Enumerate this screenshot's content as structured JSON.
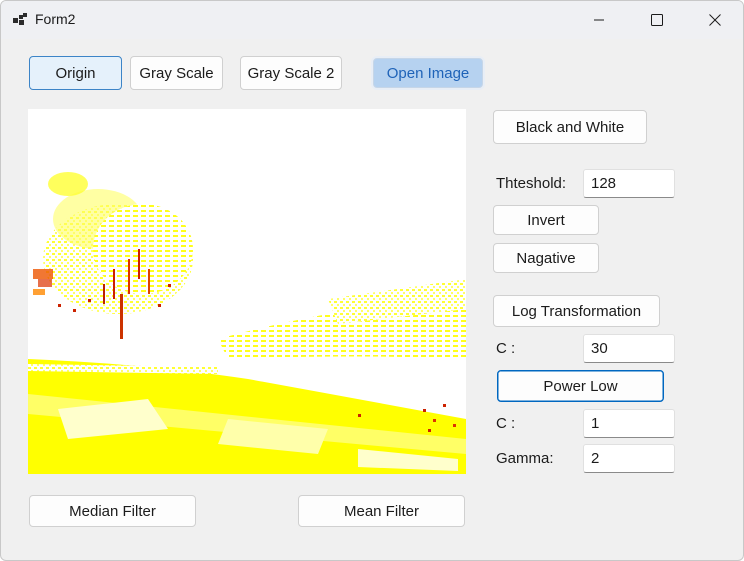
{
  "window": {
    "title": "Form2"
  },
  "toolbar": {
    "origin_label": "Origin",
    "gray_scale_label": "Gray Scale",
    "gray_scale_2_label": "Gray Scale 2",
    "open_image_label": "Open Image"
  },
  "side_panel": {
    "black_and_white_label": "Black and White",
    "threshold_label": "Thteshold:",
    "threshold_value": "128",
    "invert_label": "Invert",
    "negative_label": "Nagative",
    "log_transformation_label": "Log Transformation",
    "log_c_label": "C :",
    "log_c_value": "30",
    "power_low_label": "Power Low",
    "power_c_label": "C :",
    "power_c_value": "1",
    "gamma_label": "Gamma:",
    "gamma_value": "2"
  },
  "bottom": {
    "median_filter_label": "Median Filter",
    "mean_filter_label": "Mean Filter"
  },
  "colors": {
    "image_background": "#ffffff",
    "image_highlight": "#ffff00",
    "image_shadow": "#cc1a00",
    "accent": "#0067c0"
  },
  "icons": {
    "app": "app-icon",
    "minimize": "minimize-icon",
    "maximize": "maximize-icon",
    "close": "close-icon"
  }
}
